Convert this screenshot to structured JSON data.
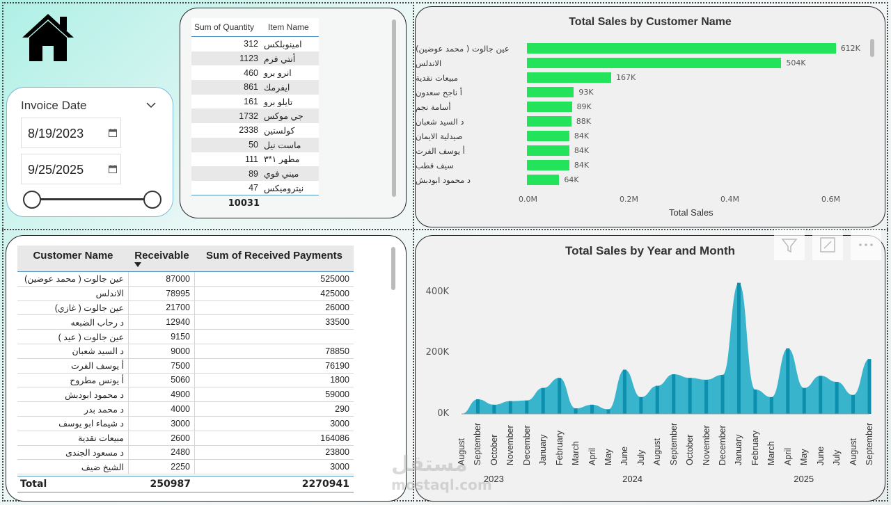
{
  "slicer": {
    "title": "Invoice Date",
    "start_date": "8/19/2023",
    "end_date": "9/25/2025"
  },
  "qty_table": {
    "col_qty": "Sum of Quantity",
    "col_name": "Item Name",
    "rows": [
      {
        "qty": "312",
        "name": "امينوبلكس"
      },
      {
        "qty": "1123",
        "name": "أنتي فرم"
      },
      {
        "qty": "460",
        "name": "انرو برو"
      },
      {
        "qty": "861",
        "name": "ايفرمك"
      },
      {
        "qty": "161",
        "name": "تايلو برو"
      },
      {
        "qty": "1732",
        "name": "جي موكس"
      },
      {
        "qty": "2338",
        "name": "كولستين"
      },
      {
        "qty": "50",
        "name": "ماست نيل"
      },
      {
        "qty": "111",
        "name": "مطهر ١*٣"
      },
      {
        "qty": "89",
        "name": "ميني فوي"
      },
      {
        "qty": "47",
        "name": "نيتروميكس"
      }
    ],
    "total": "10031"
  },
  "bar_chart": {
    "title": "Total Sales by Customer Name",
    "xlabel": "Total Sales",
    "ticks": [
      "0.0M",
      "0.2M",
      "0.4M",
      "0.6M"
    ]
  },
  "chart_data": [
    {
      "type": "bar",
      "orientation": "horizontal",
      "title": "Total Sales by Customer Name",
      "xlabel": "Total Sales",
      "categories": [
        "عين جالوت ( محمد عوضين)",
        "الاندلس",
        "مبيعات نقدية",
        "أ ناجح سعدون",
        "أسامة نجم",
        "د السيد شعبان",
        "صيدلية الايمان",
        "أ يوسف الفرت",
        "سيف قطب",
        "د محمود ابودبش"
      ],
      "values": [
        612000,
        504000,
        167000,
        93000,
        89000,
        88000,
        84000,
        84000,
        84000,
        64000
      ],
      "value_labels": [
        "612K",
        "504K",
        "167K",
        "93K",
        "89K",
        "88K",
        "84K",
        "84K",
        "84K",
        "64K"
      ],
      "xlim": [
        0,
        600000
      ],
      "color": "#22e35a"
    },
    {
      "type": "area",
      "title": "Total Sales by Year and Month",
      "categories": [
        "August",
        "September",
        "October",
        "November",
        "December",
        "January",
        "February",
        "March",
        "April",
        "May",
        "June",
        "July",
        "August",
        "September",
        "October",
        "November",
        "December",
        "January",
        "February",
        "March",
        "April",
        "May",
        "June",
        "July",
        "August",
        "September"
      ],
      "years": [
        {
          "label": "2023",
          "start": 0,
          "end": 4
        },
        {
          "label": "2024",
          "start": 5,
          "end": 16
        },
        {
          "label": "2025",
          "start": 17,
          "end": 25
        }
      ],
      "values": [
        0,
        48000,
        30000,
        42000,
        44000,
        85000,
        118000,
        18000,
        30000,
        15000,
        145000,
        55000,
        92000,
        130000,
        118000,
        112000,
        128000,
        430000,
        80000,
        55000,
        215000,
        85000,
        125000,
        105000,
        62000,
        180000
      ],
      "yticks": [
        "0K",
        "200K",
        "400K"
      ],
      "ylim": [
        0,
        440000
      ],
      "color": "#19a9c7"
    }
  ],
  "area_chart": {
    "title": "Total Sales by Year and Month",
    "yticks": [
      "0K",
      "200K",
      "400K"
    ]
  },
  "rec_table": {
    "col_name": "Customer Name",
    "col_rec": "Receivable",
    "col_pay": "Sum of Received Payments",
    "rows": [
      {
        "name": "عين جالوت ( محمد عوضين)",
        "rec": "87000",
        "pay": "525000"
      },
      {
        "name": "الاندلس",
        "rec": "78995",
        "pay": "425000"
      },
      {
        "name": "عين جالوت ( غازي)",
        "rec": "21700",
        "pay": "26000"
      },
      {
        "name": "د رحاب الضبعه",
        "rec": "12940",
        "pay": "33500"
      },
      {
        "name": "عين جالوت ( عيد )",
        "rec": "9150",
        "pay": ""
      },
      {
        "name": "د السيد شعبان",
        "rec": "9000",
        "pay": "78850"
      },
      {
        "name": "أ يوسف الفرت",
        "rec": "7500",
        "pay": "76190"
      },
      {
        "name": "أ يونس مطروح",
        "rec": "5060",
        "pay": "1800"
      },
      {
        "name": "د محمود ابودبش",
        "rec": "4900",
        "pay": "59000"
      },
      {
        "name": "د محمد بدر",
        "rec": "4000",
        "pay": "290"
      },
      {
        "name": "د شيماء ابو يوسف",
        "rec": "3000",
        "pay": "3000"
      },
      {
        "name": "مبيعات نقدية",
        "rec": "2600",
        "pay": "164086"
      },
      {
        "name": "د مسعود الجندى",
        "rec": "2480",
        "pay": "23800"
      },
      {
        "name": "الشيخ ضيف",
        "rec": "2250",
        "pay": "3000"
      }
    ],
    "total_label": "Total",
    "total_rec": "250987",
    "total_pay": "2270941"
  },
  "watermark": {
    "ar": "مستقل",
    "en": "mostaql.com"
  },
  "icons": {
    "home": "home-icon",
    "filter": "filter-icon",
    "focus": "focus-mode-icon",
    "more": "more-options-icon"
  }
}
